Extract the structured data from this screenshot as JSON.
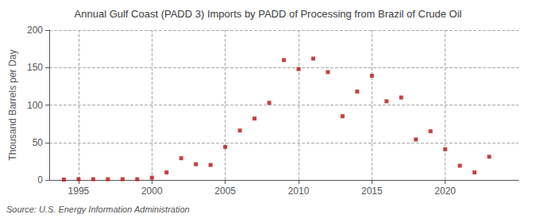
{
  "chart_data": {
    "type": "scatter",
    "title": "Annual Gulf Coast (PADD 3) Imports by PADD of Processing from Brazil of Crude Oil",
    "ylabel": "Thousand Barrels per Day",
    "annotation": "Source: U.S. Energy Information Administration",
    "x": [
      1994,
      1995,
      1996,
      1997,
      1998,
      1999,
      2000,
      2001,
      2002,
      2003,
      2004,
      2005,
      2006,
      2007,
      2008,
      2009,
      2010,
      2011,
      2012,
      2013,
      2014,
      2015,
      2016,
      2017,
      2018,
      2019,
      2020,
      2021,
      2022,
      2023
    ],
    "values": [
      0.5,
      1,
      1,
      1,
      1,
      1,
      3,
      10,
      29,
      21,
      20,
      44,
      66,
      82,
      103,
      160,
      148,
      162,
      144,
      85,
      118,
      139,
      105,
      110,
      54,
      65,
      41,
      19,
      10,
      31
    ],
    "color": "#bb1111",
    "marker": "square",
    "xlim": [
      1993,
      2025
    ],
    "xticks": [
      1995,
      2000,
      2005,
      2010,
      2015,
      2020
    ],
    "ylim": [
      0,
      200
    ],
    "yticks": [
      0,
      50,
      100,
      150,
      200
    ],
    "grid": true
  }
}
